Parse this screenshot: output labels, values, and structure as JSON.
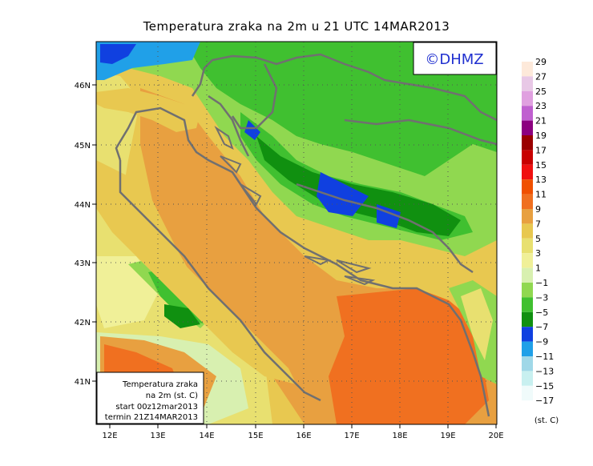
{
  "title": "Temperatura zraka na 2m u 21 UTC 14MAR2013",
  "logo": {
    "text": "©DHMZ"
  },
  "info_box": {
    "line1": "Temperatura zraka",
    "line2": "na 2m (st. C)",
    "line3": "start 00z12mar2013",
    "line4": "termin 21Z14MAR2013"
  },
  "axes": {
    "lat_labels": [
      "46N",
      "45N",
      "44N",
      "43N",
      "42N",
      "41N"
    ],
    "lon_labels": [
      "12E",
      "13E",
      "14E",
      "15E",
      "16E",
      "17E",
      "18E",
      "19E",
      "20E"
    ]
  },
  "legend": {
    "unit": "(st. C)",
    "labels": [
      "29",
      "27",
      "25",
      "23",
      "21",
      "19",
      "17",
      "15",
      "13",
      "11",
      "9",
      "7",
      "5",
      "3",
      "1",
      "−1",
      "−3",
      "−5",
      "−7",
      "−9",
      "−11",
      "−13",
      "−15",
      "−17"
    ],
    "colors": [
      "#fde9da",
      "#e8c8e6",
      "#e0a0e0",
      "#c060d0",
      "#8c0080",
      "#9a0000",
      "#c80000",
      "#f01010",
      "#f05000",
      "#f07020",
      "#e8a040",
      "#e8c850",
      "#e8e070",
      "#f0f098",
      "#d8f0b0",
      "#90d850",
      "#40c030",
      "#109010",
      "#1040e0",
      "#20a0e8",
      "#a0d8e8",
      "#c8f0f0",
      "#f0fbfb"
    ]
  }
}
